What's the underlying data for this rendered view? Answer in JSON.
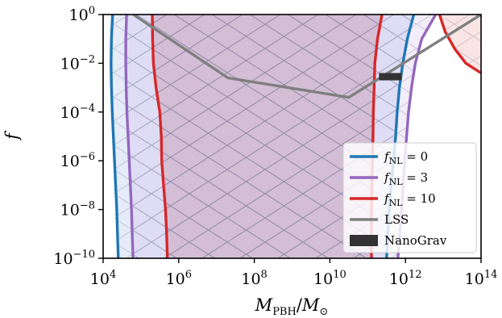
{
  "chart_data": {
    "type": "line",
    "xlabel": "M_PBH / M_⊙",
    "ylabel": "f",
    "x_log10_range": [
      4,
      14
    ],
    "y_log10_range": [
      -10,
      0
    ],
    "x_ticks": [
      4,
      6,
      8,
      10,
      12,
      14
    ],
    "y_ticks": [
      0,
      -2,
      -4,
      -6,
      -8,
      -10
    ],
    "legend_position": "lower-right",
    "series": [
      {
        "name": "f_NL = 0",
        "label_main": "f",
        "label_sub": "NL",
        "label_rest": " = 0",
        "color": "#1f77b4",
        "fill": "rgba(170,190,235,0.30)",
        "branches": [
          [
            [
              4.25,
              0
            ],
            [
              4.22,
              -1
            ],
            [
              4.21,
              -2
            ],
            [
              4.22,
              -3
            ],
            [
              4.24,
              -4
            ],
            [
              4.27,
              -5
            ],
            [
              4.3,
              -6
            ],
            [
              4.33,
              -7
            ],
            [
              4.36,
              -8
            ],
            [
              4.38,
              -9
            ],
            [
              4.4,
              -10
            ]
          ],
          [
            [
              11.5,
              -10
            ],
            [
              11.53,
              -9
            ],
            [
              11.57,
              -8
            ],
            [
              11.62,
              -7
            ],
            [
              11.68,
              -6
            ],
            [
              11.74,
              -5
            ],
            [
              11.78,
              -4
            ],
            [
              11.84,
              -3
            ],
            [
              11.93,
              -2
            ],
            [
              12.05,
              -1
            ],
            [
              12.22,
              0
            ]
          ]
        ]
      },
      {
        "name": "f_NL = 3",
        "label_main": "f",
        "label_sub": "NL",
        "label_rest": " = 3",
        "color": "#9467bd",
        "fill": "rgba(200,175,230,0.22)",
        "branches": [
          [
            [
              4.62,
              0
            ],
            [
              4.6,
              -1
            ],
            [
              4.6,
              -2
            ],
            [
              4.61,
              -3
            ],
            [
              4.63,
              -4
            ],
            [
              4.66,
              -5
            ],
            [
              4.69,
              -6
            ],
            [
              4.72,
              -7
            ],
            [
              4.75,
              -8
            ],
            [
              4.77,
              -9
            ],
            [
              4.79,
              -10
            ]
          ],
          [
            [
              11.8,
              -10
            ],
            [
              11.85,
              -9
            ],
            [
              11.9,
              -8
            ],
            [
              11.94,
              -7
            ],
            [
              11.98,
              -6
            ],
            [
              12.03,
              -5
            ],
            [
              12.08,
              -4
            ],
            [
              12.16,
              -3
            ],
            [
              12.26,
              -2
            ],
            [
              12.43,
              -1
            ],
            [
              12.8,
              0
            ]
          ]
        ]
      },
      {
        "name": "f_NL = 10",
        "label_main": "f",
        "label_sub": "NL",
        "label_rest": " = 10",
        "color": "#d62728",
        "fill": "rgba(190,120,140,0.30)",
        "branches": [
          [
            [
              5.3,
              0
            ],
            [
              5.31,
              -1
            ],
            [
              5.33,
              -2
            ],
            [
              5.4,
              -3
            ],
            [
              5.5,
              -4
            ],
            [
              5.54,
              -5
            ],
            [
              5.55,
              -6
            ],
            [
              5.6,
              -7
            ],
            [
              5.65,
              -8
            ],
            [
              5.68,
              -9
            ],
            [
              5.7,
              -10
            ]
          ],
          [
            [
              11.1,
              -10
            ],
            [
              11.1,
              -9
            ],
            [
              11.1,
              -8
            ],
            [
              11.11,
              -7
            ],
            [
              11.13,
              -6
            ],
            [
              11.14,
              -5
            ],
            [
              11.15,
              -4
            ],
            [
              11.17,
              -3
            ],
            [
              11.19,
              -2
            ],
            [
              11.26,
              -1
            ],
            [
              11.38,
              0
            ]
          ],
          [
            [
              12.9,
              0
            ],
            [
              13.05,
              -0.7
            ],
            [
              13.3,
              -1.4
            ],
            [
              13.6,
              -2.0
            ],
            [
              14.0,
              -2.4
            ]
          ]
        ]
      },
      {
        "name": "LSS",
        "label_main": "LSS",
        "label_sub": "",
        "label_rest": "",
        "color": "#7f7f7f",
        "points": [
          [
            4.8,
            0
          ],
          [
            7.3,
            -2.6
          ],
          [
            10.5,
            -3.4
          ],
          [
            14.0,
            0
          ]
        ]
      }
    ],
    "nanograv": {
      "name": "NanoGrav",
      "color": "#333333",
      "x_log10": [
        11.3,
        11.9
      ],
      "y_log10": [
        -2.7,
        -2.4
      ]
    }
  }
}
